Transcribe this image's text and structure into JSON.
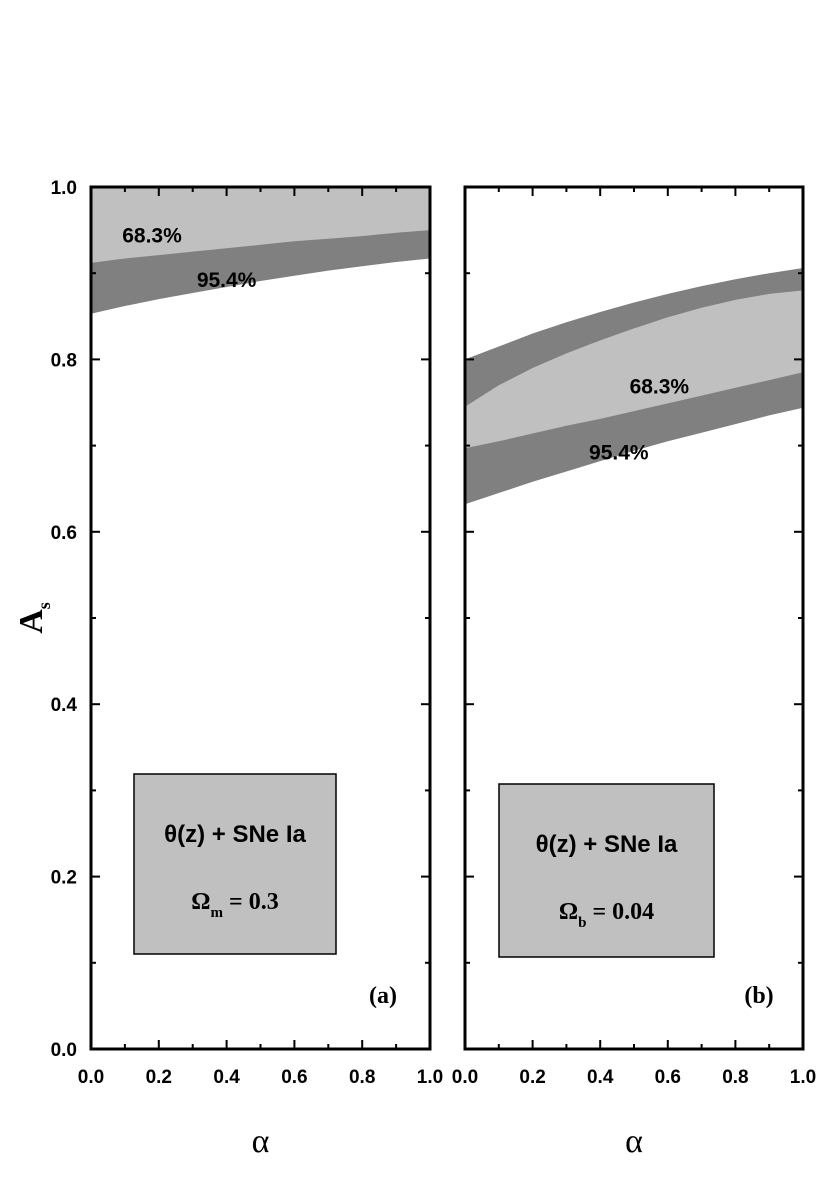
{
  "chart_data": [
    {
      "panel": "a",
      "type": "area",
      "panel_tag": "(a)",
      "xlabel": "α",
      "ylabel_main": "A",
      "ylabel_sub": "s",
      "xlim": [
        0,
        1
      ],
      "ylim": [
        0,
        1
      ],
      "x_ticks": [
        "0.0",
        "0.2",
        "0.4",
        "0.6",
        "0.8",
        "1.0"
      ],
      "y_ticks": [
        "0.0",
        "0.2",
        "0.4",
        "0.6",
        "0.8",
        "1.0"
      ],
      "regions": [
        {
          "name": "95.4%",
          "color": "#808080",
          "x": [
            0,
            0.1,
            0.2,
            0.3,
            0.4,
            0.5,
            0.6,
            0.7,
            0.8,
            0.9,
            1.0
          ],
          "upper": [
            1.0,
            1.0,
            1.0,
            1.0,
            1.0,
            1.0,
            1.0,
            1.0,
            1.0,
            1.0,
            1.0
          ],
          "lower": [
            0.853,
            0.862,
            0.87,
            0.877,
            0.884,
            0.891,
            0.897,
            0.903,
            0.908,
            0.913,
            0.917
          ]
        },
        {
          "name": "68.3%",
          "color": "#c0c0c0",
          "x": [
            0,
            0.1,
            0.2,
            0.3,
            0.4,
            0.5,
            0.6,
            0.7,
            0.8,
            0.9,
            1.0
          ],
          "upper": [
            1.0,
            1.0,
            1.0,
            1.0,
            1.0,
            1.0,
            1.0,
            1.0,
            1.0,
            1.0,
            1.0
          ],
          "lower": [
            0.912,
            0.917,
            0.921,
            0.925,
            0.929,
            0.933,
            0.937,
            0.94,
            0.943,
            0.947,
            0.95
          ]
        }
      ],
      "annotations": [
        {
          "text": "68.3%",
          "x": 0.18,
          "y": 0.945
        },
        {
          "text": "95.4%",
          "x": 0.4,
          "y": 0.893
        }
      ],
      "legend_box": {
        "line1": "θ(z) + SNe Ia",
        "param_symbol": "Ω",
        "param_sub": "m",
        "param_value": " = 0.3"
      }
    },
    {
      "panel": "b",
      "type": "area",
      "panel_tag": "(b)",
      "xlabel": "α",
      "xlim": [
        0,
        1
      ],
      "ylim": [
        0,
        1
      ],
      "x_ticks": [
        "0.0",
        "0.2",
        "0.4",
        "0.6",
        "0.8",
        "1.0"
      ],
      "y_ticks": [
        "0.0",
        "0.2",
        "0.4",
        "0.6",
        "0.8",
        "1.0"
      ],
      "regions": [
        {
          "name": "95.4%",
          "color": "#808080",
          "x": [
            0,
            0.1,
            0.2,
            0.3,
            0.4,
            0.5,
            0.6,
            0.7,
            0.8,
            0.9,
            1.0
          ],
          "upper": [
            0.8,
            0.815,
            0.83,
            0.843,
            0.855,
            0.866,
            0.876,
            0.885,
            0.893,
            0.9,
            0.906
          ],
          "lower": [
            0.632,
            0.645,
            0.658,
            0.67,
            0.682,
            0.694,
            0.705,
            0.715,
            0.725,
            0.735,
            0.744
          ]
        },
        {
          "name": "68.3%",
          "color": "#c0c0c0",
          "x": [
            0,
            0.1,
            0.2,
            0.3,
            0.4,
            0.5,
            0.6,
            0.7,
            0.8,
            0.9,
            1.0
          ],
          "upper": [
            0.745,
            0.77,
            0.79,
            0.807,
            0.822,
            0.836,
            0.849,
            0.86,
            0.869,
            0.876,
            0.88
          ],
          "lower": [
            0.697,
            0.705,
            0.714,
            0.723,
            0.731,
            0.74,
            0.749,
            0.758,
            0.767,
            0.776,
            0.785
          ]
        }
      ],
      "annotations": [
        {
          "text": "68.3%",
          "x": 0.575,
          "y": 0.77
        },
        {
          "text": "95.4%",
          "x": 0.455,
          "y": 0.693
        }
      ],
      "legend_box": {
        "line1": "θ(z) + SNe Ia",
        "param_symbol": "Ω",
        "param_sub": "b",
        "param_value": " = 0.04"
      }
    }
  ]
}
